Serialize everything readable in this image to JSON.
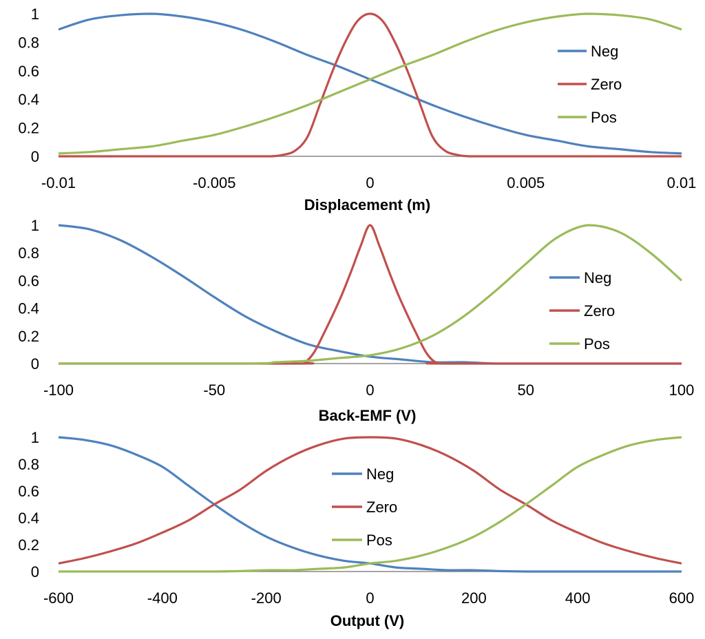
{
  "chart_data": [
    {
      "type": "line",
      "title": "",
      "xlabel": "Displacement (m)",
      "ylabel": "",
      "xlim": [
        -0.01,
        0.01
      ],
      "ylim": [
        0,
        1
      ],
      "xticks": [
        "-0.01",
        "-0.005",
        "0",
        "0.005",
        "0.01"
      ],
      "xtick_values": [
        -0.01,
        -0.005,
        0,
        0.005,
        0.01
      ],
      "yticks": [
        "0",
        "0.2",
        "0.4",
        "0.6",
        "0.8",
        "1"
      ],
      "ytick_values": [
        0,
        0.2,
        0.4,
        0.6,
        0.8,
        1
      ],
      "legend_position": "right",
      "series": [
        {
          "name": "Neg",
          "color": "#4F81BD",
          "x": [
            -0.01,
            -0.009,
            -0.008,
            -0.007,
            -0.006,
            -0.005,
            -0.004,
            -0.003,
            -0.002,
            -0.001,
            0,
            0.001,
            0.002,
            0.003,
            0.004,
            0.005,
            0.006,
            0.007,
            0.008,
            0.009,
            0.01
          ],
          "values": [
            0.89,
            0.96,
            0.99,
            1.0,
            0.98,
            0.94,
            0.88,
            0.8,
            0.71,
            0.63,
            0.54,
            0.45,
            0.36,
            0.28,
            0.21,
            0.15,
            0.11,
            0.07,
            0.05,
            0.03,
            0.02
          ]
        },
        {
          "name": "Zero",
          "color": "#C0504D",
          "x": [
            -0.01,
            -0.004,
            -0.0032,
            -0.0028,
            -0.0024,
            -0.002,
            -0.0016,
            -0.0012,
            -0.0008,
            -0.0004,
            0,
            0.0004,
            0.0008,
            0.0012,
            0.0016,
            0.002,
            0.0024,
            0.0028,
            0.0032,
            0.004,
            0.01
          ],
          "values": [
            0,
            0,
            0,
            0.01,
            0.04,
            0.14,
            0.37,
            0.6,
            0.8,
            0.95,
            1.0,
            0.95,
            0.8,
            0.6,
            0.37,
            0.14,
            0.04,
            0.01,
            0,
            0,
            0
          ]
        },
        {
          "name": "Pos",
          "color": "#9BBB59",
          "x": [
            -0.01,
            -0.009,
            -0.008,
            -0.007,
            -0.006,
            -0.005,
            -0.004,
            -0.003,
            -0.002,
            -0.001,
            0,
            0.001,
            0.002,
            0.003,
            0.004,
            0.005,
            0.006,
            0.007,
            0.008,
            0.009,
            0.01
          ],
          "values": [
            0.02,
            0.03,
            0.05,
            0.07,
            0.11,
            0.15,
            0.21,
            0.28,
            0.36,
            0.45,
            0.54,
            0.63,
            0.71,
            0.8,
            0.88,
            0.94,
            0.98,
            1.0,
            0.99,
            0.96,
            0.89
          ]
        }
      ]
    },
    {
      "type": "line",
      "title": "",
      "xlabel": "Back-EMF (V)",
      "ylabel": "",
      "xlim": [
        -100,
        100
      ],
      "ylim": [
        0,
        1
      ],
      "xticks": [
        "-100",
        "-50",
        "0",
        "50",
        "100"
      ],
      "xtick_values": [
        -100,
        -50,
        0,
        50,
        100
      ],
      "yticks": [
        "0",
        "0.2",
        "0.4",
        "0.6",
        "0.8",
        "1"
      ],
      "ytick_values": [
        0,
        0.2,
        0.4,
        0.6,
        0.8,
        1
      ],
      "legend_position": "right",
      "series": [
        {
          "name": "Neg",
          "color": "#4F81BD",
          "x": [
            -100,
            -90,
            -80,
            -70,
            -60,
            -50,
            -40,
            -30,
            -20,
            -10,
            0,
            10,
            20,
            30,
            40,
            50,
            100
          ],
          "values": [
            1.0,
            0.97,
            0.89,
            0.77,
            0.63,
            0.48,
            0.34,
            0.23,
            0.14,
            0.09,
            0.05,
            0.03,
            0.01,
            0.01,
            0,
            0,
            0
          ]
        },
        {
          "name": "Zero",
          "color": "#C0504D",
          "x": [
            -100,
            -25,
            -21,
            -18,
            -15,
            -12,
            -9,
            -6,
            -3,
            0,
            3,
            6,
            9,
            12,
            15,
            18,
            21,
            25,
            100
          ],
          "values": [
            0,
            0,
            0.01,
            0.08,
            0.21,
            0.35,
            0.5,
            0.67,
            0.85,
            1.0,
            0.85,
            0.67,
            0.5,
            0.35,
            0.21,
            0.08,
            0.01,
            0,
            0
          ]
        },
        {
          "name": "Pos",
          "color": "#9BBB59",
          "x": [
            -100,
            -40,
            -30,
            -20,
            -10,
            0,
            10,
            20,
            30,
            40,
            50,
            60,
            70,
            80,
            90,
            100
          ],
          "values": [
            0,
            0,
            0.01,
            0.02,
            0.04,
            0.06,
            0.11,
            0.2,
            0.34,
            0.52,
            0.72,
            0.91,
            1.0,
            0.95,
            0.8,
            0.6
          ]
        }
      ]
    },
    {
      "type": "line",
      "title": "",
      "xlabel": "Output (V)",
      "ylabel": "",
      "xlim": [
        -600,
        600
      ],
      "ylim": [
        0,
        1
      ],
      "xticks": [
        "-600",
        "-400",
        "-200",
        "0",
        "200",
        "400",
        "600"
      ],
      "xtick_values": [
        -600,
        -400,
        -200,
        0,
        200,
        400,
        600
      ],
      "yticks": [
        "0",
        "0.2",
        "0.4",
        "0.6",
        "0.8",
        "1"
      ],
      "ytick_values": [
        0,
        0.2,
        0.4,
        0.6,
        0.8,
        1
      ],
      "legend_position": "center",
      "series": [
        {
          "name": "Neg",
          "color": "#4F81BD",
          "x": [
            -600,
            -550,
            -500,
            -450,
            -400,
            -350,
            -300,
            -250,
            -200,
            -150,
            -100,
            -50,
            0,
            50,
            100,
            150,
            200,
            300,
            600
          ],
          "values": [
            1.0,
            0.98,
            0.94,
            0.87,
            0.78,
            0.64,
            0.5,
            0.37,
            0.26,
            0.18,
            0.12,
            0.08,
            0.06,
            0.03,
            0.02,
            0.01,
            0.01,
            0,
            0
          ]
        },
        {
          "name": "Zero",
          "color": "#C0504D",
          "x": [
            -600,
            -550,
            -500,
            -450,
            -400,
            -350,
            -300,
            -250,
            -200,
            -150,
            -100,
            -50,
            0,
            50,
            100,
            150,
            200,
            250,
            300,
            350,
            400,
            450,
            500,
            550,
            600
          ],
          "values": [
            0.06,
            0.1,
            0.15,
            0.21,
            0.29,
            0.38,
            0.5,
            0.61,
            0.75,
            0.86,
            0.94,
            0.99,
            1.0,
            0.99,
            0.94,
            0.86,
            0.75,
            0.61,
            0.5,
            0.38,
            0.29,
            0.21,
            0.15,
            0.1,
            0.06
          ]
        },
        {
          "name": "Pos",
          "color": "#9BBB59",
          "x": [
            -600,
            -300,
            -200,
            -150,
            -100,
            -50,
            0,
            50,
            100,
            150,
            200,
            250,
            300,
            350,
            400,
            450,
            500,
            550,
            600
          ],
          "values": [
            0,
            0,
            0.01,
            0.01,
            0.02,
            0.03,
            0.06,
            0.08,
            0.12,
            0.18,
            0.26,
            0.37,
            0.5,
            0.64,
            0.78,
            0.87,
            0.94,
            0.98,
            1.0
          ]
        }
      ]
    }
  ]
}
